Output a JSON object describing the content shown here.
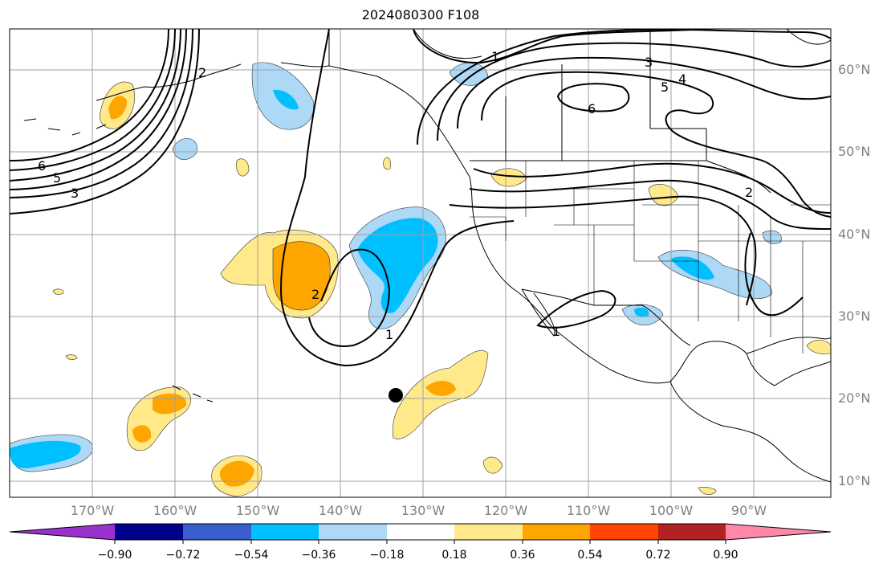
{
  "title": "2024080300 F108",
  "lat_labels": [
    "60°N",
    "50°N",
    "40°N",
    "30°N",
    "20°N",
    "10°N"
  ],
  "lon_labels": [
    "170°W",
    "160°W",
    "150°W",
    "140°W",
    "130°W",
    "120°W",
    "110°W",
    "100°W",
    "90°W"
  ],
  "colorbar": {
    "colors": [
      "#9932cc",
      "#00008b",
      "#3a5fcd",
      "#00bfff",
      "#add8f6",
      "#ffffff",
      "#ffe98a",
      "#ffa500",
      "#ff4500",
      "#b22222",
      "#ff88a8"
    ],
    "tick_labels": [
      "−0.90",
      "−0.72",
      "−0.54",
      "−0.36",
      "−0.18",
      "0.18",
      "0.36",
      "0.54",
      "0.72",
      "0.90"
    ]
  },
  "contour_labels": [
    "1",
    "1",
    "1",
    "2",
    "2",
    "2",
    "3",
    "3",
    "4",
    "5",
    "5",
    "6",
    "6"
  ],
  "shading": {
    "colors": {
      "light_blue": "#add8f6",
      "blue": "#00bfff",
      "yellow": "#ffe98a",
      "orange": "#ffa500"
    }
  }
}
